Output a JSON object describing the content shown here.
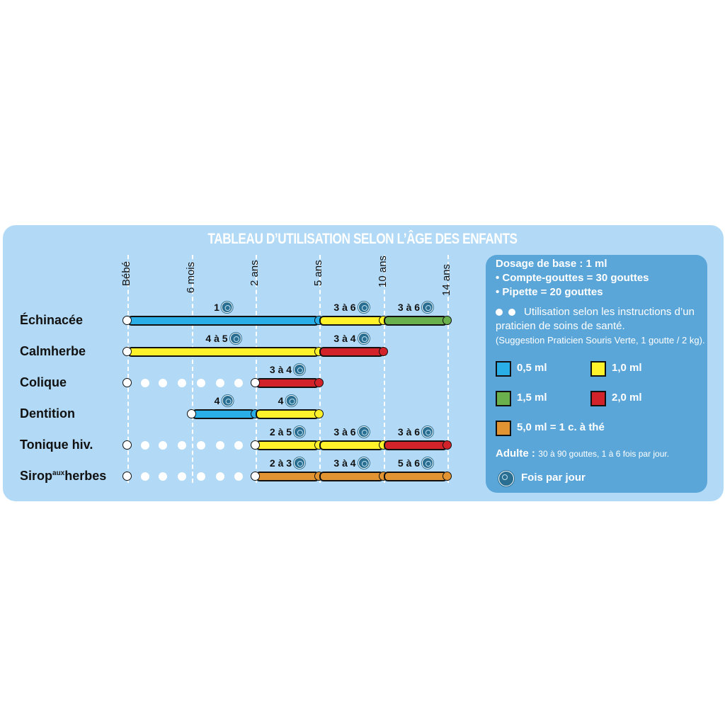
{
  "title": "TABLEAU D’UTILISATION SELON L’ÂGE DES ENFANTS",
  "columns": [
    "Bébé",
    "6 mois",
    "2 ans",
    "5 ans",
    "10 ans",
    "14 ans"
  ],
  "colors": {
    "0,5 ml": "#2aaee8",
    "1,0 ml": "#fff12a",
    "1,5 ml": "#6ab04c",
    "2,0 ml": "#d2232a",
    "5,0 ml": "#e39432",
    "background": "#b2daf6",
    "legend": "#5aa6d9"
  },
  "rows": [
    {
      "name": "Échinacée",
      "practitioner_dots": false,
      "segments": [
        {
          "from": 0,
          "to": 3,
          "dose": "0,5 ml",
          "times": "1"
        },
        {
          "from": 3,
          "to": 4,
          "dose": "1,0 ml",
          "times": "3 à 6"
        },
        {
          "from": 4,
          "to": 5,
          "dose": "1,5 ml",
          "times": "3 à 6"
        }
      ]
    },
    {
      "name": "Calmherbe",
      "practitioner_dots": false,
      "segments": [
        {
          "from": 0,
          "to": 3,
          "dose": "1,0 ml",
          "times": "4 à 5"
        },
        {
          "from": 3,
          "to": 4,
          "dose": "2,0 ml",
          "times": "3 à 4"
        }
      ]
    },
    {
      "name": "Colique",
      "practitioner_dots": true,
      "segments": [
        {
          "from": 2,
          "to": 3,
          "dose": "2,0 ml",
          "times": "3 à 4"
        }
      ]
    },
    {
      "name": "Dentition",
      "practitioner_dots": false,
      "segments": [
        {
          "from": 1,
          "to": 2,
          "dose": "0,5 ml",
          "times": "4"
        },
        {
          "from": 2,
          "to": 3,
          "dose": "1,0 ml",
          "times": "4"
        }
      ]
    },
    {
      "name": "Tonique hiv.",
      "practitioner_dots": true,
      "segments": [
        {
          "from": 2,
          "to": 3,
          "dose": "1,0 ml",
          "times": "2 à 5"
        },
        {
          "from": 3,
          "to": 4,
          "dose": "1,0 ml",
          "times": "3 à 6"
        },
        {
          "from": 4,
          "to": 5,
          "dose": "2,0 ml",
          "times": "3 à 6"
        }
      ]
    },
    {
      "name": "Sirop",
      "name_sup": "aux",
      "name_after": "herbes",
      "practitioner_dots": true,
      "segments": [
        {
          "from": 2,
          "to": 3,
          "dose": "5,0 ml",
          "times": "2 à 3"
        },
        {
          "from": 3,
          "to": 4,
          "dose": "5,0 ml",
          "times": "3 à 4"
        },
        {
          "from": 4,
          "to": 5,
          "dose": "5,0 ml",
          "times": "5 à 6"
        }
      ]
    }
  ],
  "legend": {
    "base": "Dosage de base : 1 ml",
    "dropper": "• Compte-gouttes = 30 gouttes",
    "pipette": "• Pipette = 20 gouttes",
    "dots_note_1": "Utilisation selon les instructions d’un",
    "dots_note_2": "praticien de soins de santé.",
    "suggestion": "(Suggestion Praticien Souris Verte, 1 goutte / 2 kg).",
    "swatches": [
      {
        "label": "0,5 ml",
        "color": "#2aaee8"
      },
      {
        "label": "1,0 ml",
        "color": "#fff12a"
      },
      {
        "label": "1,5 ml",
        "color": "#6ab04c"
      },
      {
        "label": "2,0 ml",
        "color": "#d2232a"
      },
      {
        "label": "5,0 ml = 1 c. à thé",
        "color": "#e39432"
      }
    ],
    "adult_label": "Adulte :",
    "adult_text": "30 à 90 gouttes, 1 à 6 fois par jour.",
    "per_day": "Fois par jour"
  }
}
